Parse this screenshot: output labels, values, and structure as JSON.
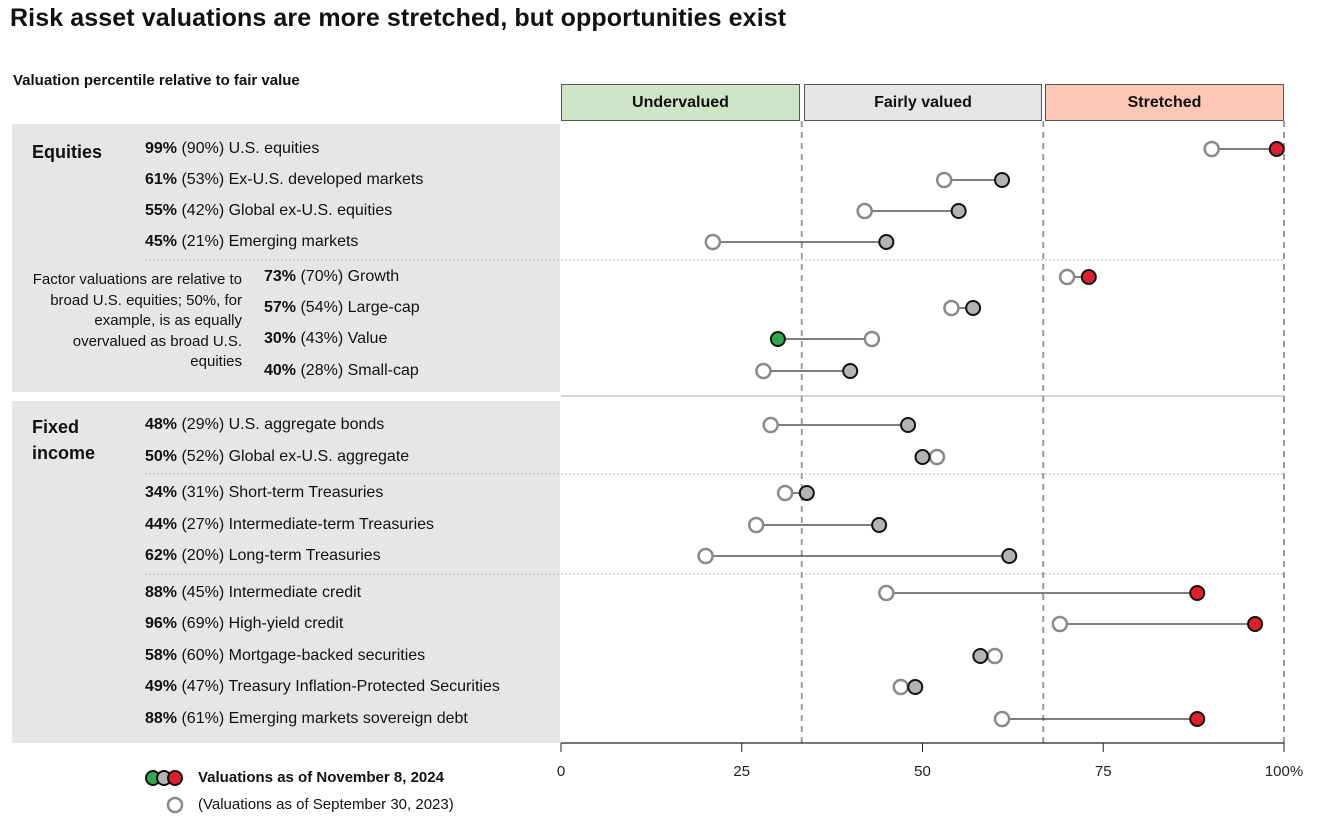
{
  "title": "Risk asset valuations are more stretched, but opportunities exist",
  "subtitle": "Valuation percentile relative to fair value",
  "zones": {
    "undervalued": {
      "label": "Undervalued",
      "color": "#cfe5c8"
    },
    "fairly_valued": {
      "label": "Fairly valued",
      "color": "#e4e5e7"
    },
    "stretched": {
      "label": "Stretched",
      "color": "#fcc7b5"
    }
  },
  "sections": {
    "equities": "Equities",
    "fixed_income": "Fixed income",
    "factor_note": "Factor valuations are relative to broad U.S. equities; 50%, for example, is as equally overvalued as broad U.S. equities"
  },
  "legend": {
    "current": "Valuations as of November 8, 2024",
    "prior": "(Valuations as of September 30, 2023)"
  },
  "colors": {
    "undervalued": "#2ea84f",
    "fairly_valued": "#b3b3b3",
    "stretched": "#e01f2d",
    "prior_ring": "#8a8a8a"
  },
  "chart_data": {
    "type": "scatter",
    "xlim": [
      0,
      100
    ],
    "x_ticks": [
      "0",
      "25",
      "50",
      "75",
      "100%"
    ],
    "x_tick_values": [
      0,
      25,
      50,
      75,
      100
    ],
    "zone_boundaries": [
      33.3,
      66.7
    ],
    "series": [
      {
        "name": "Valuations as of November 8, 2024",
        "field": "current"
      },
      {
        "name": "(Valuations as of September 30, 2023)",
        "field": "prior"
      }
    ],
    "rows": [
      {
        "label": "U.S. equities",
        "current": 99,
        "prior": 90,
        "current_text": "99%",
        "prior_text": "(90%)",
        "group": "equities",
        "status": "stretched"
      },
      {
        "label": "Ex-U.S. developed markets",
        "current": 61,
        "prior": 53,
        "current_text": "61%",
        "prior_text": "(53%)",
        "group": "equities",
        "status": "fairly_valued"
      },
      {
        "label": "Global ex-U.S. equities",
        "current": 55,
        "prior": 42,
        "current_text": "55%",
        "prior_text": "(42%)",
        "group": "equities",
        "status": "fairly_valued"
      },
      {
        "label": "Emerging markets",
        "current": 45,
        "prior": 21,
        "current_text": "45%",
        "prior_text": "(21%)",
        "group": "equities",
        "status": "fairly_valued"
      },
      {
        "label": "Growth",
        "current": 73,
        "prior": 70,
        "current_text": "73%",
        "prior_text": "(70%)",
        "group": "factors",
        "status": "stretched"
      },
      {
        "label": "Large-cap",
        "current": 57,
        "prior": 54,
        "current_text": "57%",
        "prior_text": "(54%)",
        "group": "factors",
        "status": "fairly_valued"
      },
      {
        "label": "Value",
        "current": 30,
        "prior": 43,
        "current_text": "30%",
        "prior_text": "(43%)",
        "group": "factors",
        "status": "undervalued"
      },
      {
        "label": "Small-cap",
        "current": 40,
        "prior": 28,
        "current_text": "40%",
        "prior_text": "(28%)",
        "group": "factors",
        "status": "fairly_valued"
      },
      {
        "label": "U.S. aggregate bonds",
        "current": 48,
        "prior": 29,
        "current_text": "48%",
        "prior_text": "(29%)",
        "group": "aggregate",
        "status": "fairly_valued"
      },
      {
        "label": "Global ex-U.S. aggregate",
        "current": 50,
        "prior": 52,
        "current_text": "50%",
        "prior_text": "(52%)",
        "group": "aggregate",
        "status": "fairly_valued"
      },
      {
        "label": "Short-term Treasuries",
        "current": 34,
        "prior": 31,
        "current_text": "34%",
        "prior_text": "(31%)",
        "group": "treasuries",
        "status": "fairly_valued"
      },
      {
        "label": "Intermediate-term Treasuries",
        "current": 44,
        "prior": 27,
        "current_text": "44%",
        "prior_text": "(27%)",
        "group": "treasuries",
        "status": "fairly_valued"
      },
      {
        "label": "Long-term Treasuries",
        "current": 62,
        "prior": 20,
        "current_text": "62%",
        "prior_text": "(20%)",
        "group": "treasuries",
        "status": "fairly_valued"
      },
      {
        "label": "Intermediate credit",
        "current": 88,
        "prior": 45,
        "current_text": "88%",
        "prior_text": "(45%)",
        "group": "credit",
        "status": "stretched"
      },
      {
        "label": "High-yield credit",
        "current": 96,
        "prior": 69,
        "current_text": "96%",
        "prior_text": "(69%)",
        "group": "credit",
        "status": "stretched"
      },
      {
        "label": "Mortgage-backed securities",
        "current": 58,
        "prior": 60,
        "current_text": "58%",
        "prior_text": "(60%)",
        "group": "credit",
        "status": "fairly_valued"
      },
      {
        "label": "Treasury Inflation-Protected Securities",
        "current": 49,
        "prior": 47,
        "current_text": "49%",
        "prior_text": "(47%)",
        "group": "credit",
        "status": "fairly_valued"
      },
      {
        "label": "Emerging markets sovereign debt",
        "current": 88,
        "prior": 61,
        "current_text": "88%",
        "prior_text": "(61%)",
        "group": "credit",
        "status": "stretched"
      }
    ]
  }
}
